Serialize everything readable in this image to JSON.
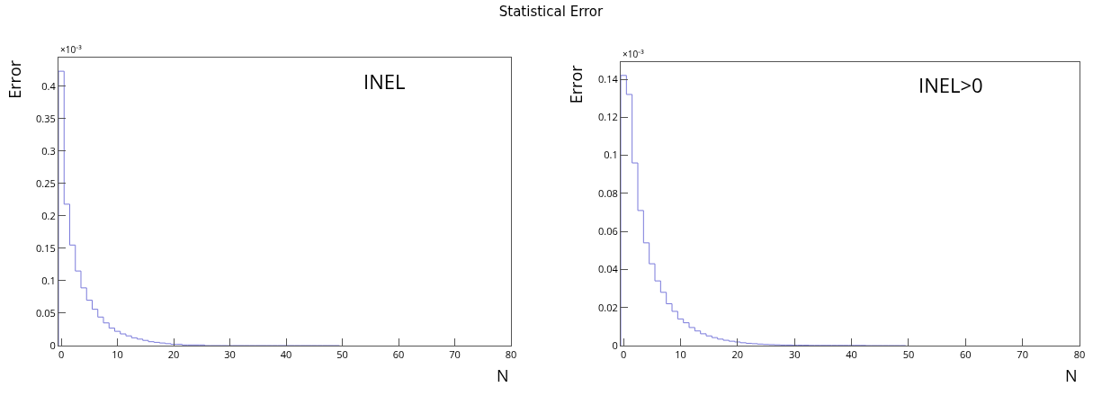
{
  "chart_data": [
    {
      "type": "histogram",
      "title": "Statistical Error",
      "xlabel": "N",
      "ylabel": "Error",
      "annotations": [
        "INEL",
        "×10⁻³"
      ],
      "color": "#7b7bdb",
      "bins": [
        -0.5,
        0.5,
        1.5,
        2.5,
        3.5,
        4.5,
        5.5,
        6.5,
        7.5,
        8.5,
        9.5,
        10.5,
        11.5,
        12.5,
        13.5,
        14.5,
        15.5,
        16.5,
        17.5,
        18.5,
        19.5,
        20.5,
        21.5,
        22.5,
        23.5,
        24.5,
        25.5,
        26.5,
        27.5,
        28.5,
        29.5,
        30.5,
        31.5,
        32.5,
        33.5,
        34.5,
        35.5,
        36.5,
        37.5,
        38.5,
        39.5,
        40.5,
        41.5,
        42.5,
        43.5,
        44.5,
        45.5,
        46.5,
        47.5,
        48.5,
        49.5
      ],
      "values": [
        0.423,
        0.218,
        0.155,
        0.115,
        0.089,
        0.07,
        0.056,
        0.044,
        0.035,
        0.027,
        0.022,
        0.018,
        0.015,
        0.012,
        0.01,
        0.008,
        0.006,
        0.005,
        0.004,
        0.003,
        0.002,
        0.002,
        0.001,
        0.001,
        0.001,
        0.001,
        0,
        0,
        0,
        0,
        0,
        0,
        0,
        0,
        0,
        0,
        0,
        0,
        0,
        0,
        0,
        0,
        0,
        0,
        0,
        0,
        0,
        0,
        0,
        0
      ],
      "xlim": [
        -0.5,
        80
      ],
      "xticks": [
        0,
        10,
        20,
        30,
        40,
        50,
        60,
        70,
        80
      ],
      "ylim": [
        0,
        0.444
      ],
      "yticks": [
        0,
        0.05,
        0.1,
        0.15,
        0.2,
        0.25,
        0.3,
        0.35,
        0.4
      ],
      "grid": false
    },
    {
      "type": "histogram",
      "xlabel": "N",
      "ylabel": "Error",
      "annotations": [
        "INEL>0",
        "×10⁻³"
      ],
      "color": "#7b7bdb",
      "bins": [
        -0.5,
        0.5,
        1.5,
        2.5,
        3.5,
        4.5,
        5.5,
        6.5,
        7.5,
        8.5,
        9.5,
        10.5,
        11.5,
        12.5,
        13.5,
        14.5,
        15.5,
        16.5,
        17.5,
        18.5,
        19.5,
        20.5,
        21.5,
        22.5,
        23.5,
        24.5,
        25.5,
        26.5,
        27.5,
        28.5,
        29.5,
        30.5,
        31.5,
        32.5,
        33.5,
        34.5,
        35.5,
        36.5,
        37.5,
        38.5,
        39.5,
        40.5,
        41.5,
        42.5,
        43.5,
        44.5,
        45.5,
        46.5,
        47.5,
        48.5,
        49.5
      ],
      "values": [
        0.142,
        0.132,
        0.096,
        0.071,
        0.054,
        0.043,
        0.034,
        0.028,
        0.022,
        0.018,
        0.014,
        0.012,
        0.0095,
        0.0077,
        0.0062,
        0.0051,
        0.0042,
        0.0034,
        0.0028,
        0.0023,
        0.0019,
        0.0015,
        0.0012,
        0.001,
        0.0008,
        0.0006,
        0.0005,
        0.0004,
        0.0003,
        0.0003,
        0.0002,
        0.0002,
        0.0002,
        0.0001,
        0.0001,
        0.0001,
        0.0001,
        0.0001,
        0.0001,
        0.0001,
        0.0001,
        0.0001,
        0.0001,
        0,
        0,
        0,
        0,
        0,
        0,
        0
      ],
      "xlim": [
        -0.5,
        80
      ],
      "xticks": [
        0,
        10,
        20,
        30,
        40,
        50,
        60,
        70,
        80
      ],
      "ylim": [
        0,
        0.149
      ],
      "yticks": [
        0,
        0.02,
        0.04,
        0.06,
        0.08,
        0.1,
        0.12,
        0.14
      ],
      "grid": false
    }
  ]
}
